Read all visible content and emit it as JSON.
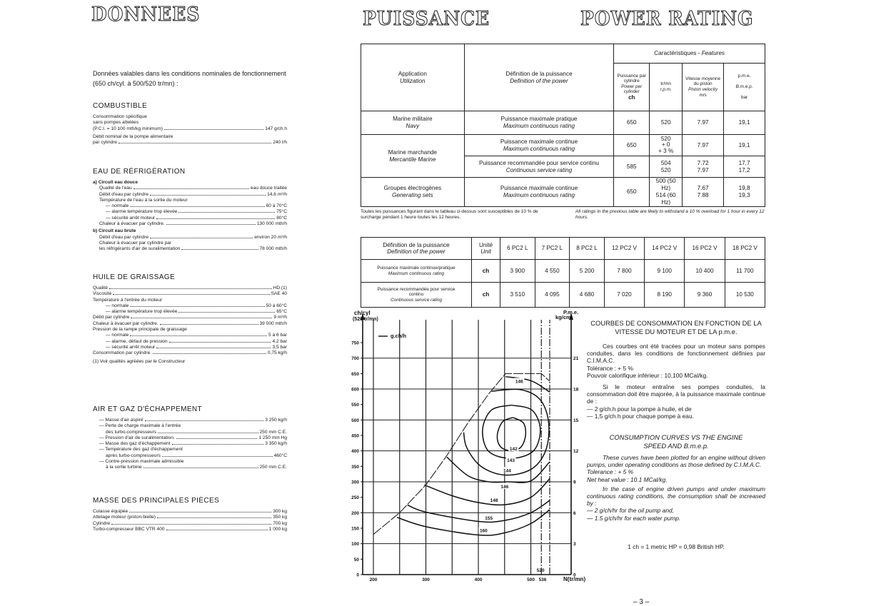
{
  "titles": {
    "donnees": "DONNEES",
    "puissance": "PUISSANCE",
    "power_rating": "POWER RATING"
  },
  "intro": "Données valables dans les conditions nominales de fonctionnement (650 ch/cyl. à 500/520 tr/mn) :",
  "sections": [
    {
      "heading": "COMBUSTIBLE",
      "rows": [
        {
          "t": "Consommation spécifique"
        },
        {
          "t": "sans pompes attelées"
        },
        {
          "t": "(P.C.I. = 10 100 mth/kg minimum)",
          "v": "147 g/ch.h"
        },
        {
          "t": "Débit nominal de la pompe alimentaire",
          "g": 1
        },
        {
          "t": "par cylindre",
          "v": "240 l/h"
        }
      ]
    },
    {
      "heading": "EAU DE RÉFRIGÉRATION",
      "rows": [
        {
          "t": "a)  Circuit eau douce",
          "b": 1
        },
        {
          "t": "Qualité de l'eau",
          "v": "eau douce traitée",
          "i": 1
        },
        {
          "t": "Débit d'eau par cylindre",
          "v": "14,6 m³/h",
          "i": 1
        },
        {
          "t": "Température de l'eau à la sortie du moteur",
          "i": 1
        },
        {
          "t": "— normale",
          "v": "60 à 70°C",
          "i": 2
        },
        {
          "t": "— alarme température trop élevée",
          "v": "75°C",
          "i": 2
        },
        {
          "t": "— sécurité arrêt moteur",
          "v": "80°C",
          "i": 2
        },
        {
          "t": "Chaleur à évacuer par cylindre.",
          "v": "130 000 mth/h",
          "i": 1
        },
        {
          "t": "b)  Circuit eau brute",
          "b": 1
        },
        {
          "t": "Débit d'eau par cylindre",
          "v": "environ 20 m³/h",
          "i": 1
        },
        {
          "t": "Chaleur à évacuer par cylindre par",
          "i": 1
        },
        {
          "t": "les réfrigérants d'air de suralimentation",
          "v": "78 000 mth/h",
          "i": 1
        }
      ]
    },
    {
      "heading": "HUILE DE GRAISSAGE",
      "rows": [
        {
          "t": "Qualité",
          "v": "HD (1)"
        },
        {
          "t": "Viscosité",
          "v": "SAE 40"
        },
        {
          "t": "Température à l'entrée du moteur"
        },
        {
          "t": "— normale",
          "v": "50 à 60°C",
          "i": 2
        },
        {
          "t": "— alarme température trop élevée",
          "v": "65°C",
          "i": 2
        },
        {
          "t": "Débit par cylindre",
          "v": "9 m³/h"
        },
        {
          "t": "Chaleur à évacuer par cylindre.",
          "v": "39 000 mth/h"
        },
        {
          "t": "Pression de la rampe principale de graissage"
        },
        {
          "t": "— normale",
          "v": "5 à 6 bar",
          "i": 2
        },
        {
          "t": "— alarme, défaut de pression",
          "v": "4,2 bar",
          "i": 2
        },
        {
          "t": "— sécurité arrêt moteur",
          "v": "3,5 bar",
          "i": 2
        },
        {
          "t": "Consommation par cylindre.",
          "v": "0,75 kg/h"
        },
        {
          "t": "(1) Voir qualités agréées par le Constructeur",
          "g": 1
        }
      ]
    },
    {
      "heading": "AIR ET GAZ D'ÉCHAPPEMENT",
      "rows": [
        {
          "t": "— Masse d'air aspiré",
          "v": "3 250 kg/h",
          "i": 1
        },
        {
          "t": "— Perte de charge maximale à l'entrée",
          "i": 1
        },
        {
          "t": "des turbo-compresseurs",
          "v": "250 mm C.E.",
          "i": 2
        },
        {
          "t": "— Pression d'air de suralimentation.",
          "v": "1 250 mm Hg",
          "i": 1
        },
        {
          "t": "— Masse des gaz d'échappement",
          "v": "3 350 kg/h",
          "i": 1
        },
        {
          "t": "— Température des gaz d'échappement",
          "i": 1
        },
        {
          "t": "après turbo-compresseurs",
          "v": "460°C",
          "i": 2
        },
        {
          "t": "— Contre-pression maximale admissible",
          "i": 1
        },
        {
          "t": "à la sortie turbine",
          "v": "250 mm C.E.",
          "i": 2
        }
      ]
    },
    {
      "heading": "MASSE DES PRINCIPALES PIÈCES",
      "rows": [
        {
          "t": "Culasse équipée",
          "v": "300 kg"
        },
        {
          "t": "Attelage moteur (piston-bielle)",
          "v": "350 kg"
        },
        {
          "t": "Cylindre",
          "v": "700 kg"
        },
        {
          "t": "Turbo-compresseur BBC VTR 400",
          "v": "1 000 kg"
        }
      ]
    }
  ],
  "table1": {
    "features": "Caractéristiques  -  ",
    "features_en": "Features",
    "h_application": "Application",
    "h_application_en": "Utilization",
    "h_definition": "Définition de la puissance",
    "h_definition_en": "Definition of the power",
    "h_power": "Puissance par cylindre",
    "h_power_en": "Power per cylinder",
    "h_power_unit": "ch",
    "h_rpm": "tr/mn",
    "h_rpm_en": "r.p.m.",
    "h_speed": "Vitesse moyenne du piston",
    "h_speed_en": "Piston velocity",
    "h_speed_unit": "m/s",
    "h_pme": "p.m.e.",
    "h_pme_en": "B.m.e.p.",
    "h_pme_unit": "bar",
    "rows": [
      {
        "app": "Marine militaire",
        "app_en": "Navy",
        "def": "Puissance maximale pratique",
        "def_en": "Maximum continuous rating",
        "ch": "650",
        "rpm": "520",
        "speed": "7.97",
        "pme": "19,1"
      },
      {
        "app": "Marine marchande",
        "app_en": "Mercantile Marine",
        "def": "Puissance maximale continue",
        "def_en": "Maximum continuous rating",
        "ch": "650",
        "rpm": "520",
        "rpm2": "+ 0",
        "rpm3": "+ 3 %",
        "speed": "7.97",
        "pme": "19,1"
      },
      {
        "def": "Puissance recommandée pour service continu",
        "def_en": "Continuous service rating",
        "ch": "585",
        "rpm": "504",
        "rpm2": "520",
        "speed": "7.72",
        "speed2": "7.97",
        "pme": "17,7",
        "pme2": "17,2"
      },
      {
        "app": "Groupes électrogènes",
        "app_en": "Generating sets",
        "def": "Puissance maximale continue",
        "def_en": "Maximum continuous rating",
        "ch": "650",
        "rpm": "500 (50 Hz)",
        "rpm2": "514 (60 Hz)",
        "speed": "7.67",
        "speed2": "7.88",
        "pme": "19,8",
        "pme2": "19,3"
      }
    ]
  },
  "footnote_fr": "Toutes les puissances figurant dans le tableau ci-dessus sont susceptibles de 10 % de surcharge pendant 1 heure toutes les 12 heures.",
  "footnote_en": "All ratings in the previous table are likely to withstand a 10 % overload for 1 hour in every 12 hours.",
  "table2": {
    "h_def": "Définition de la puissance",
    "h_def_en": "Definition of the power",
    "h_unit": "Unité",
    "h_unit_en": "Unit",
    "models": [
      "6 PC2 L",
      "7 PC2 L",
      "8 PC2 L",
      "12 PC2 V",
      "14 PC2 V",
      "16 PC2 V",
      "18 PC2 V"
    ],
    "rows": [
      {
        "def": "Puissance maximale continue/pratique",
        "def_en": "Maximum continuous rating",
        "unit": "ch",
        "values": [
          "3 900",
          "4 550",
          "5 200",
          "7 800",
          "9 100",
          "10 400",
          "11 700"
        ]
      },
      {
        "def": "Puissance recommandée pour service continu",
        "def_en": "Continuous service rating",
        "unit": "ch",
        "values": [
          "3 510",
          "4 095",
          "4 680",
          "7 020",
          "8 190",
          "9 360",
          "10 530"
        ]
      }
    ]
  },
  "chart_data": {
    "type": "contour",
    "ylabel_left": "ch/cyl",
    "ylabel_left_sub": "(520  tr/mn)",
    "ylabel_right": "P.m.e.",
    "ylabel_right_sub": "kg/cm²",
    "xlabel": "N(tr/mn)",
    "legend": "g.ch/h",
    "xlim": [
      200,
      536
    ],
    "ylim": [
      0,
      750
    ],
    "x_ticks": [
      200,
      300,
      400,
      500,
      536
    ],
    "x_marker": 520,
    "y_ticks": [
      0,
      50,
      100,
      150,
      200,
      250,
      300,
      350,
      400,
      450,
      500,
      550,
      600,
      650,
      700,
      750
    ],
    "y_right_ticks": [
      {
        "v": 0,
        "at": 0
      },
      {
        "v": 3,
        "at": 100
      },
      {
        "v": 6,
        "at": 200
      },
      {
        "v": 9,
        "at": 300
      },
      {
        "v": 12,
        "at": 400
      },
      {
        "v": 15,
        "at": 500
      },
      {
        "v": 18,
        "at": 600
      },
      {
        "v": 21,
        "at": 700
      }
    ],
    "v_grid": [
      200,
      250,
      300,
      350,
      400,
      450,
      500,
      520,
      536
    ],
    "h_grid": [
      100,
      200,
      300,
      400,
      500,
      600,
      700
    ],
    "grid": true,
    "limit_line": [
      [
        200,
        130
      ],
      [
        250,
        200
      ],
      [
        300,
        290
      ],
      [
        340,
        385
      ],
      [
        380,
        490
      ],
      [
        420,
        585
      ],
      [
        452,
        650
      ],
      [
        520,
        650
      ],
      [
        536,
        625
      ]
    ],
    "contours": [
      {
        "label": "160",
        "label_at": [
          410,
          140
        ],
        "points": [
          [
            245,
            185
          ],
          [
            300,
            155
          ],
          [
            400,
            128
          ],
          [
            450,
            135
          ],
          [
            500,
            165
          ],
          [
            536,
            210
          ]
        ]
      },
      {
        "label": "155",
        "label_at": [
          420,
          180
        ],
        "points": [
          [
            265,
            225
          ],
          [
            300,
            202
          ],
          [
            400,
            172
          ],
          [
            450,
            175
          ],
          [
            500,
            200
          ],
          [
            536,
            240
          ]
        ]
      },
      {
        "label": "148",
        "label_at": [
          430,
          238
        ],
        "points": [
          [
            297,
            290
          ],
          [
            350,
            255
          ],
          [
            400,
            233
          ],
          [
            450,
            226
          ],
          [
            500,
            250
          ],
          [
            536,
            310
          ]
        ]
      },
      {
        "label": "146",
        "label_at": [
          450,
          282
        ],
        "points": [
          [
            340,
            380
          ],
          [
            380,
            320
          ],
          [
            420,
            300
          ],
          [
            455,
            300
          ],
          [
            500,
            303
          ],
          [
            536,
            365
          ]
        ]
      },
      {
        "label": "144",
        "label_at": [
          455,
          334
        ],
        "points": [
          [
            372,
            460
          ],
          [
            378,
            410
          ],
          [
            405,
            350
          ],
          [
            450,
            322
          ],
          [
            500,
            340
          ],
          [
            528,
            400
          ],
          [
            534,
            490
          ],
          [
            518,
            565
          ],
          [
            480,
            598
          ],
          [
            425,
            593
          ]
        ]
      },
      {
        "label": "143",
        "label_at": [
          462,
          367
        ],
        "points": [
          [
            463,
            548
          ],
          [
            502,
            532
          ],
          [
            518,
            470
          ],
          [
            505,
            400
          ],
          [
            463,
            376
          ],
          [
            420,
            398
          ],
          [
            408,
            468
          ],
          [
            425,
            532
          ],
          [
            463,
            548
          ]
        ]
      },
      {
        "label": "142",
        "label_at": [
          467,
          404
        ],
        "points": [
          [
            466,
            508
          ],
          [
            486,
            490
          ],
          [
            490,
            450
          ],
          [
            481,
            412
          ],
          [
            462,
            400
          ],
          [
            442,
            414
          ],
          [
            436,
            450
          ],
          [
            446,
            494
          ],
          [
            466,
            508
          ]
        ]
      },
      {
        "label": "146",
        "label_at": [
          478,
          622
        ],
        "points": [
          [
            452,
            640
          ],
          [
            500,
            627
          ],
          [
            536,
            590
          ]
        ]
      }
    ]
  },
  "right_text": {
    "fr_title": "COURBES DE CONSOMMATION EN FONCTION DE LA VITESSE DU MOTEUR ET DE LA p.m.e.",
    "fr_p1": "Ces courbes ont été tracées pour un moteur sans pompes conduites, dans les conditions de fonctionnement définies par C.I.M.A.C.",
    "fr_tol": "Tolérance : + 5 %",
    "fr_pci": "Pouvoir calorifique inférieur : 10,100 MCal/kg.",
    "fr_p2": "Si le moteur entraîne ses pompes conduites, la consommation doit être majorée, à la puissance maximale continue de :",
    "fr_l1": "— 2 g/ch.h pour la pompe à huile, et de",
    "fr_l2": "— 1,5 g/ch.h pour chaque pompe à eau.",
    "en_title": "CONSUMPTION CURVES VS THE ENGINE SPEED AND B.m.e.p.",
    "en_p1": "These curves have been plotted for an engine without driven pumps, under operating conditions as those defined by C.I.M.A.C.",
    "en_tol": "Tolerance : + 5 %",
    "en_heat": "Net heat value : 10.1 MCal/kg.",
    "en_p2": "In the case of engine driven pumps and under maximum continuous rating conditions, the consumption shall be increased by :",
    "en_l1": "— 2 g/ch/hr for the oil pump and,",
    "en_l2": "— 1.5 g/ch/hr for each water pump.",
    "conversion": "1 ch = 1 metric HP = 0,98 British HP."
  },
  "page_number": "– 3 –"
}
